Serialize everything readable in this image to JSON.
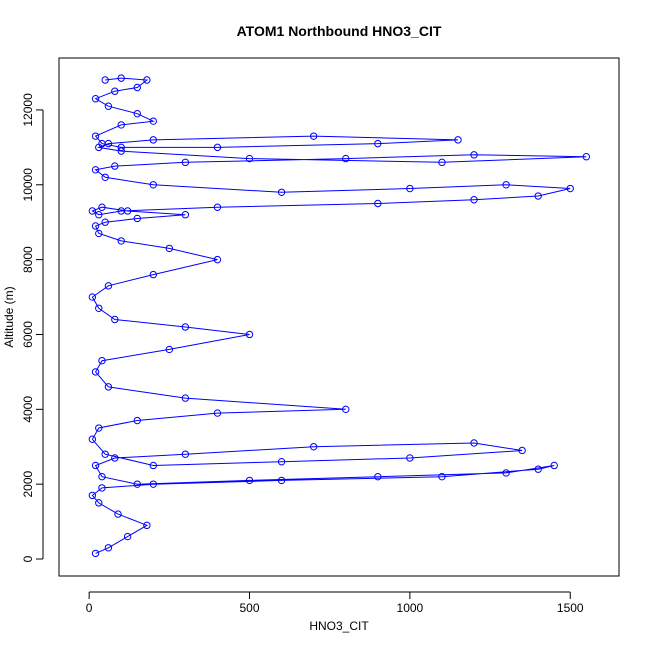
{
  "chart_data": {
    "type": "line",
    "title": "ATOM1 Northbound HNO3_CIT",
    "xlabel": "HNO3_CIT",
    "ylabel": "Altitude (m)",
    "x": [
      20,
      60,
      120,
      180,
      90,
      30,
      10,
      40,
      200,
      600,
      1100,
      1400,
      1450,
      1300,
      900,
      500,
      150,
      40,
      20,
      80,
      300,
      700,
      1200,
      1350,
      1000,
      600,
      200,
      50,
      10,
      30,
      150,
      400,
      800,
      300,
      60,
      20,
      40,
      250,
      500,
      300,
      80,
      30,
      10,
      60,
      200,
      400,
      250,
      100,
      30,
      20,
      50,
      150,
      300,
      120,
      40,
      10,
      30,
      100,
      400,
      900,
      1200,
      1400,
      1500,
      1300,
      1000,
      600,
      200,
      50,
      20,
      80,
      300,
      800,
      1200,
      1550,
      1100,
      500,
      100,
      30,
      60,
      200,
      700,
      1150,
      900,
      400,
      100,
      40,
      20,
      100,
      200,
      150,
      60,
      20,
      80,
      150,
      180,
      100,
      50
    ],
    "series": [
      {
        "color": "#0000ff",
        "values": [
          150,
          300,
          600,
          900,
          1200,
          1500,
          1700,
          1900,
          2000,
          2100,
          2200,
          2400,
          2500,
          2300,
          2200,
          2100,
          2000,
          2200,
          2500,
          2700,
          2800,
          3000,
          3100,
          2900,
          2700,
          2600,
          2500,
          2800,
          3200,
          3500,
          3700,
          3900,
          4000,
          4300,
          4600,
          5000,
          5300,
          5600,
          6000,
          6200,
          6400,
          6700,
          7000,
          7300,
          7600,
          8000,
          8300,
          8500,
          8700,
          8900,
          9000,
          9100,
          9200,
          9300,
          9400,
          9300,
          9200,
          9300,
          9400,
          9500,
          9600,
          9700,
          9900,
          10000,
          9900,
          9800,
          10000,
          10200,
          10400,
          10500,
          10600,
          10700,
          10800,
          10750,
          10600,
          10700,
          10900,
          11000,
          11100,
          11200,
          11300,
          11200,
          11100,
          11000,
          11000,
          11100,
          11300,
          11600,
          11700,
          11900,
          12100,
          12300,
          12500,
          12600,
          12800,
          12850,
          12800
        ]
      }
    ],
    "points": true,
    "xlim": [
      -94,
      1652
    ],
    "ylim": [
      -454,
      13388
    ],
    "xticks": [
      0,
      500,
      1000,
      1500
    ],
    "yticks": [
      0,
      2000,
      4000,
      6000,
      8000,
      10000,
      12000
    ]
  }
}
